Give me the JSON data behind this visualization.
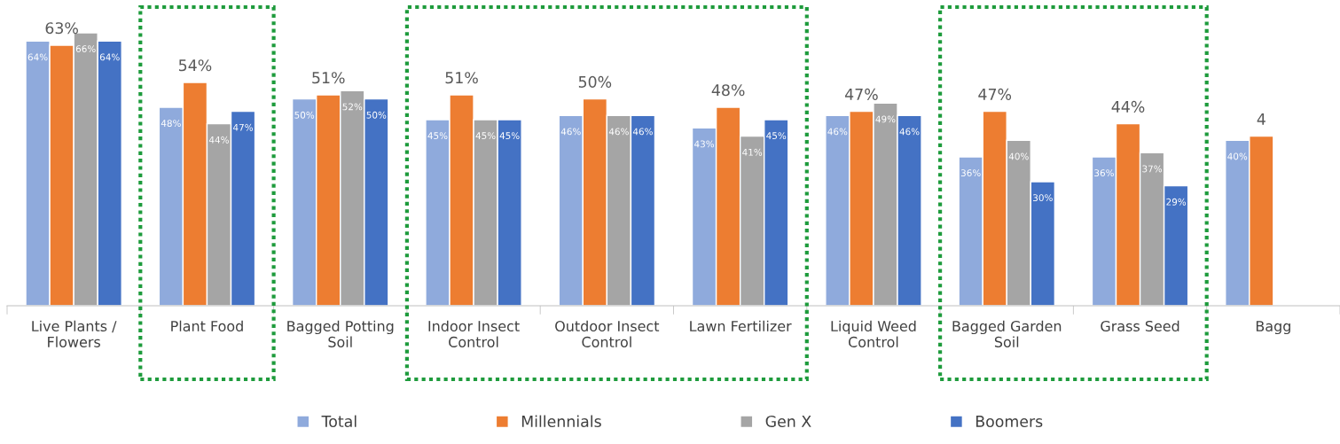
{
  "chart_data": {
    "type": "bar",
    "categories": [
      "Live Plants /\nFlowers",
      "Plant Food",
      "Bagged Potting\nSoil",
      "Indoor Insect\nControl",
      "Outdoor Insect\nControl",
      "Lawn Fertilizer",
      "Liquid Weed\nControl",
      "Bagged Garden\nSoil",
      "Grass Seed",
      "Bagg"
    ],
    "series": [
      {
        "name": "Total",
        "color": "#8faadc",
        "values": [
          64,
          48,
          50,
          45,
          46,
          43,
          46,
          36,
          36,
          40
        ],
        "value_labels": [
          "64%",
          "48%",
          "50%",
          "45%",
          "46%",
          "43%",
          "46%",
          "36%",
          "36%",
          "40%"
        ]
      },
      {
        "name": "Millennials",
        "color": "#ed7d31",
        "values": [
          63,
          54,
          51,
          51,
          50,
          48,
          47,
          47,
          44,
          41
        ],
        "value_labels": [
          "63%",
          "54%",
          "51%",
          "51%",
          "50%",
          "48%",
          "47%",
          "47%",
          "44%",
          null
        ]
      },
      {
        "name": "Gen X",
        "color": "#a5a5a5",
        "values": [
          66,
          44,
          52,
          45,
          46,
          41,
          49,
          40,
          37,
          null
        ],
        "value_labels": [
          "66%",
          "44%",
          "52%",
          "45%",
          "46%",
          "41%",
          "49%",
          "40%",
          "37%",
          null
        ]
      },
      {
        "name": "Boomers",
        "color": "#4472c4",
        "values": [
          64,
          47,
          50,
          45,
          46,
          45,
          46,
          30,
          29,
          null
        ],
        "value_labels": [
          "64%",
          "47%",
          "50%",
          "45%",
          "46%",
          "45%",
          "46%",
          "30%",
          "29%",
          null
        ]
      }
    ],
    "annotations": [
      {
        "text": "4",
        "x": "Bagg",
        "y": 41
      }
    ],
    "legend": "bottom",
    "grid": false
  }
}
